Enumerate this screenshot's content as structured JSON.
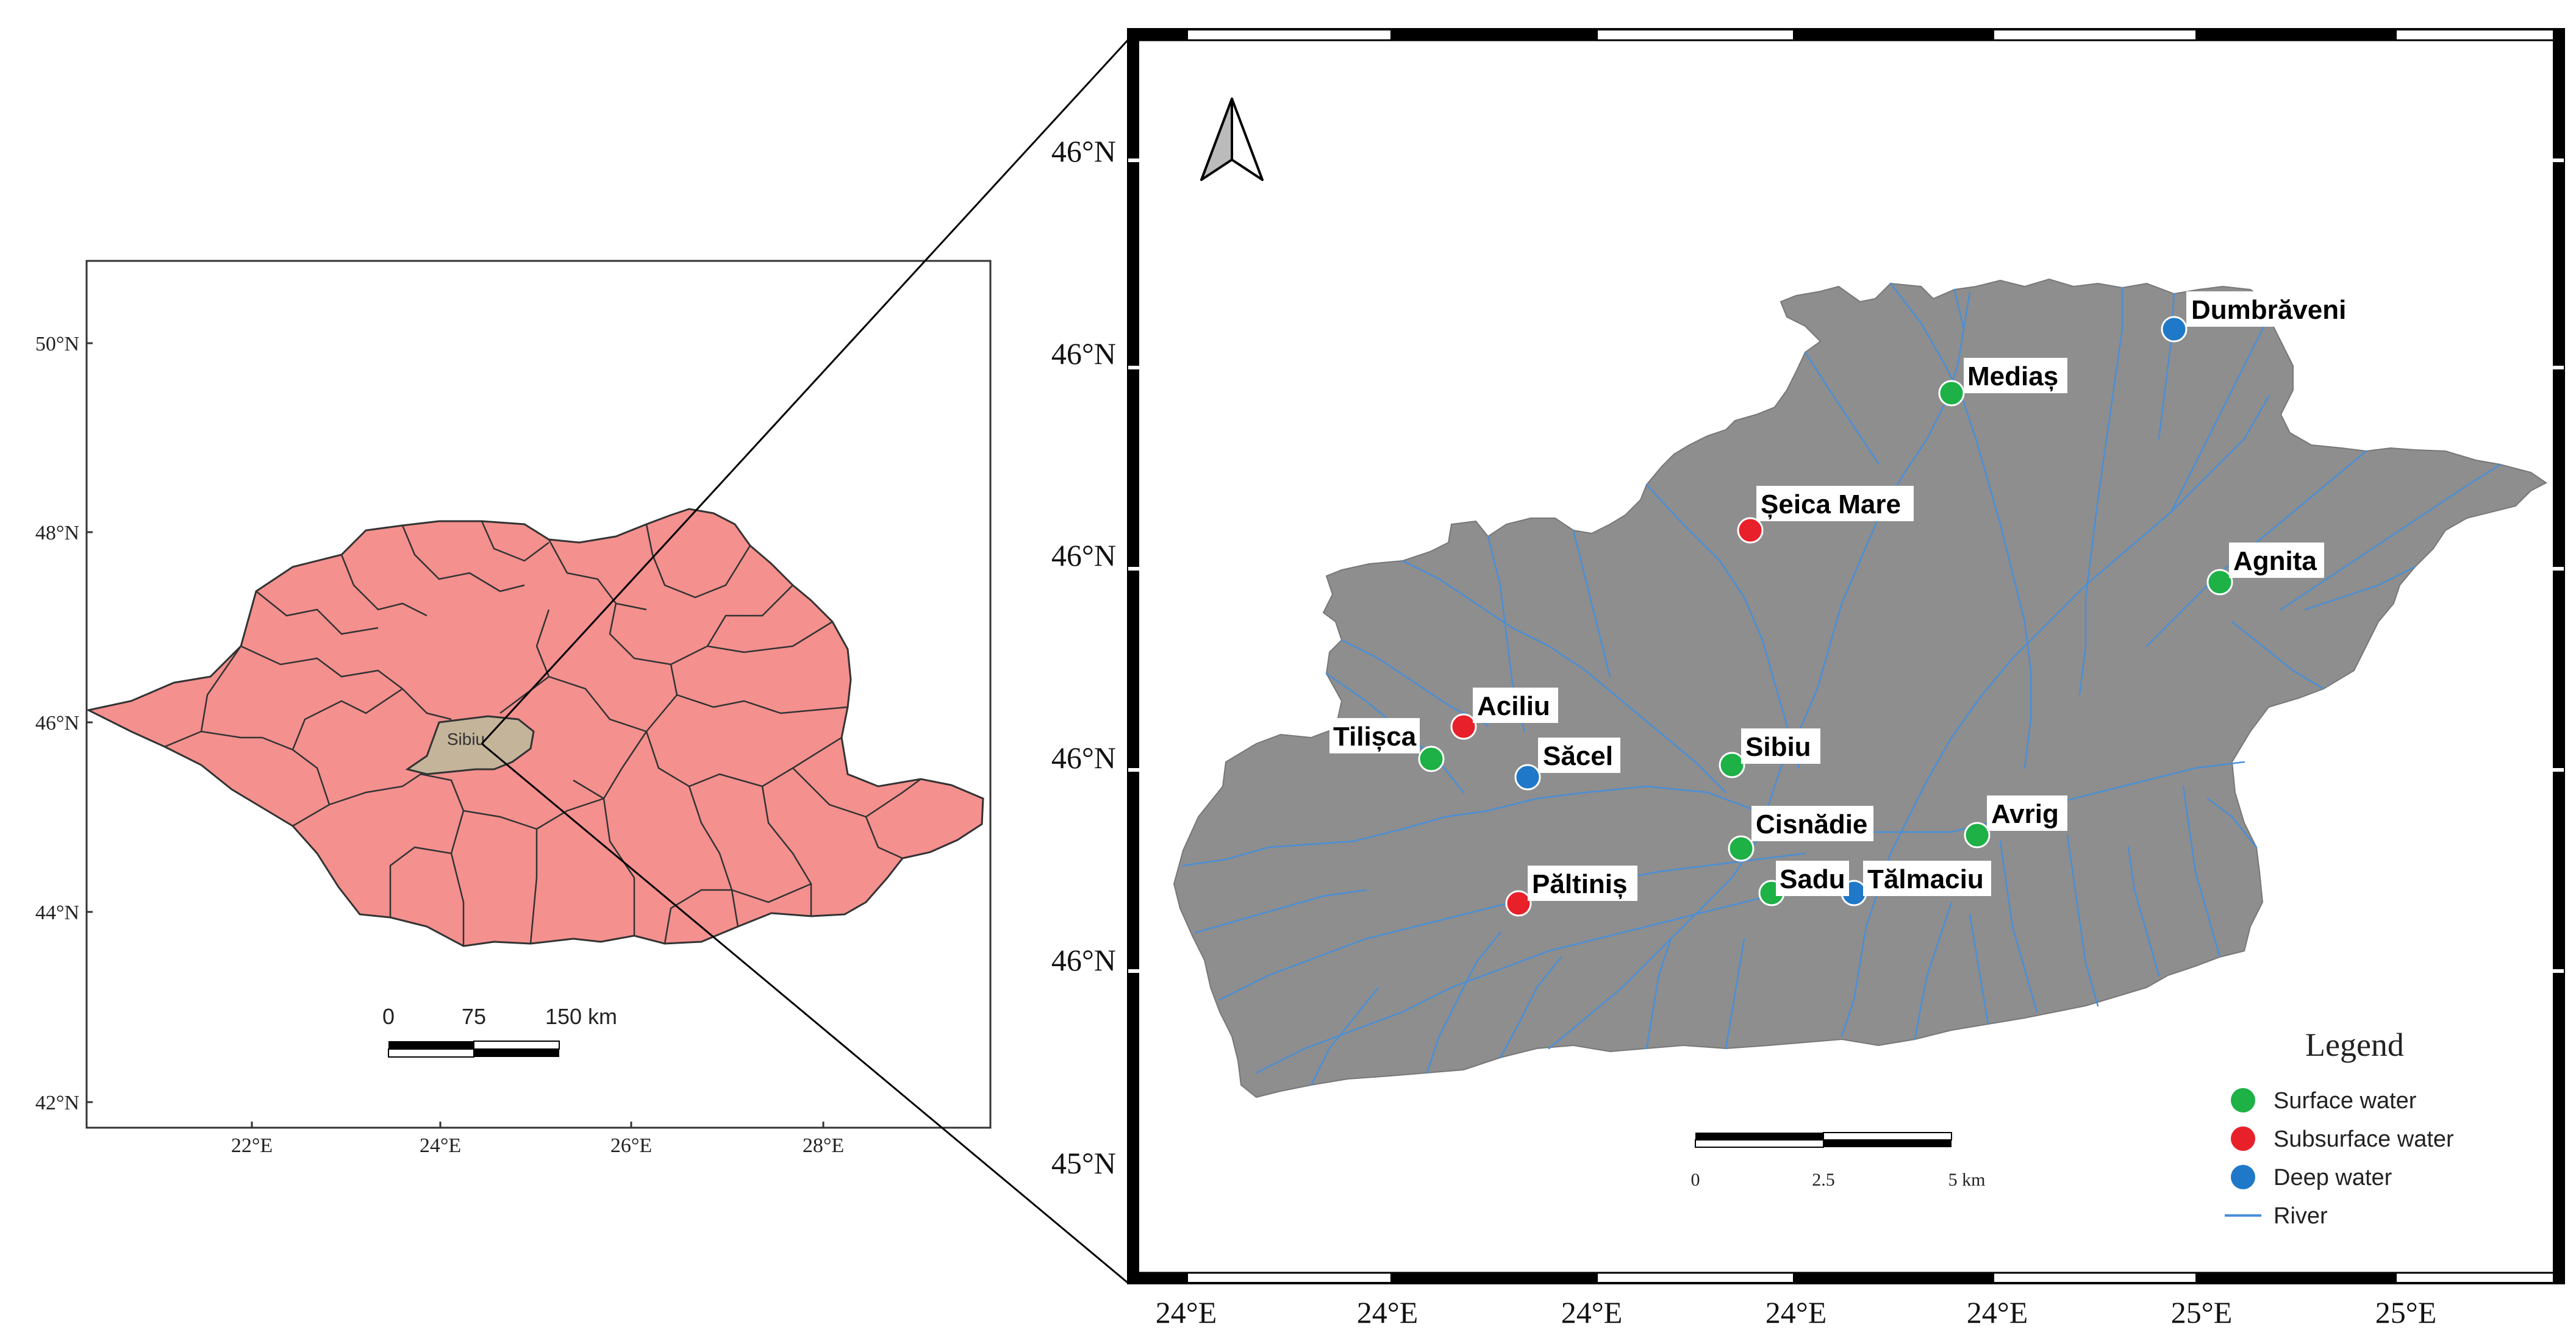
{
  "inset_map": {
    "lat_labels": [
      "50°N",
      "48°N",
      "46°N",
      "44°N",
      "42°N"
    ],
    "lon_labels": [
      "22°E",
      "24°E",
      "26°E",
      "28°E"
    ],
    "county_label": "Sibiu",
    "scalebar": {
      "labels": [
        "0",
        "75",
        "150 km"
      ]
    },
    "colors": {
      "country_fill": "#f4908e",
      "county_fill": "#c4b49a",
      "border": "#333333"
    }
  },
  "main_map": {
    "lat_labels": [
      "46°N",
      "46°N",
      "46°N",
      "46°N",
      "46°N",
      "45°N"
    ],
    "lon_labels": [
      "24°E",
      "24°E",
      "24°E",
      "24°E",
      "24°E",
      "25°E",
      "25°E"
    ],
    "sites": [
      {
        "name": "Dumbrăveni",
        "type": "deep"
      },
      {
        "name": "Mediaș",
        "type": "surface"
      },
      {
        "name": "Șeica Mare",
        "type": "subsurface"
      },
      {
        "name": "Agnita",
        "type": "surface"
      },
      {
        "name": "Aciliu",
        "type": "subsurface"
      },
      {
        "name": "Tilișca",
        "type": "surface"
      },
      {
        "name": "Săcel",
        "type": "deep"
      },
      {
        "name": "Sibiu",
        "type": "surface"
      },
      {
        "name": "Cisnădie",
        "type": "surface"
      },
      {
        "name": "Avrig",
        "type": "surface"
      },
      {
        "name": "Păltiniș",
        "type": "subsurface"
      },
      {
        "name": "Sadu",
        "type": "surface"
      },
      {
        "name": "Tălmaciu",
        "type": "deep"
      }
    ],
    "legend": {
      "title": "Legend",
      "items": [
        {
          "label": "Surface water",
          "type": "surface"
        },
        {
          "label": "Subsurface water",
          "type": "subsurface"
        },
        {
          "label": "Deep water",
          "type": "deep"
        },
        {
          "label": "River",
          "type": "river"
        }
      ]
    },
    "scalebar": {
      "labels": [
        "0",
        "2.5",
        "5 km"
      ]
    },
    "colors": {
      "surface": "#1db146",
      "subsurface": "#e8202a",
      "deep": "#1f78c8",
      "river": "#4a8fd6",
      "basin": "#8e8e8e"
    }
  }
}
